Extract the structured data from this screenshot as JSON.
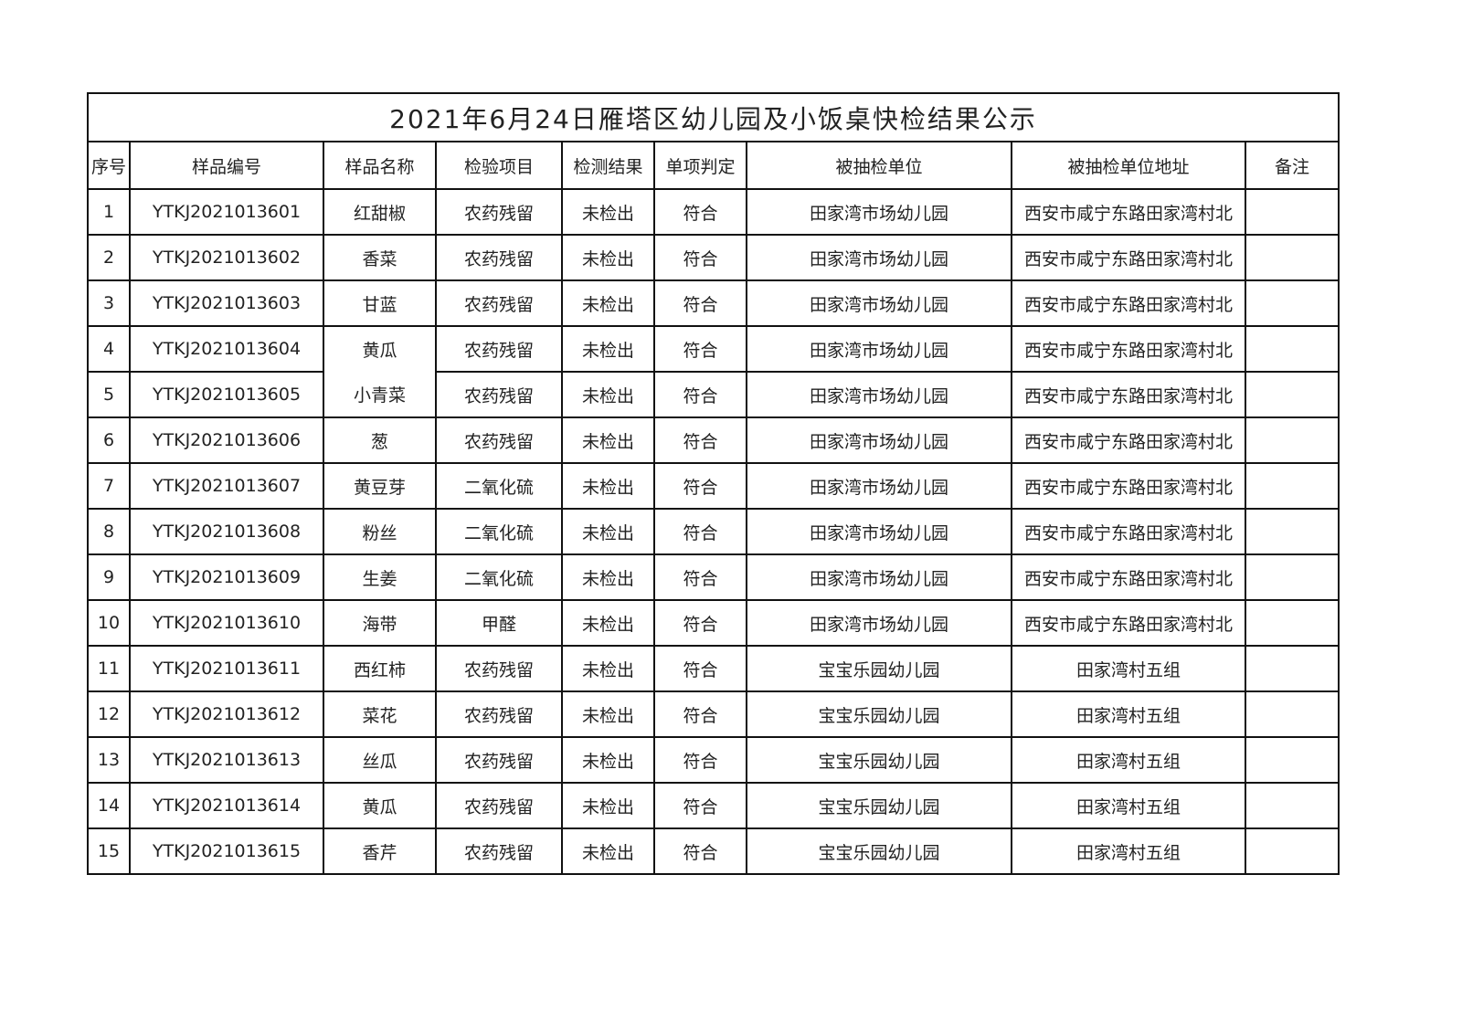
{
  "title": "2021年6月24日雁塔区幼儿园及小饭桌快检结果公示",
  "headers": [
    "序号",
    "样品编号",
    "样品名称",
    "检验项目",
    "检测结果",
    "单项判定",
    "被抽检单位",
    "被抽检单位地址",
    "备注"
  ],
  "rows": [
    [
      "1",
      "YTKJ2021013601",
      "红甜椒",
      "农药残留",
      "未检出",
      "符合",
      "田家湾市场幼儿园",
      "西安市咸宁东路田家湾村北",
      ""
    ],
    [
      "2",
      "YTKJ2021013602",
      "香菜",
      "农药残留",
      "未检出",
      "符合",
      "田家湾市场幼儿园",
      "西安市咸宁东路田家湾村北",
      ""
    ],
    [
      "3",
      "YTKJ2021013603",
      "甘蓝",
      "农药残留",
      "未检出",
      "符合",
      "田家湾市场幼儿园",
      "西安市咸宁东路田家湾村北",
      ""
    ],
    [
      "4",
      "YTKJ2021013604",
      "黄瓜",
      "农药残留",
      "未检出",
      "符合",
      "田家湾市场幼儿园",
      "西安市咸宁东路田家湾村北",
      ""
    ],
    [
      "5",
      "YTKJ2021013605",
      "小青菜",
      "农药残留",
      "未检出",
      "符合",
      "田家湾市场幼儿园",
      "西安市咸宁东路田家湾村北",
      ""
    ],
    [
      "6",
      "YTKJ2021013606",
      "葱",
      "农药残留",
      "未检出",
      "符合",
      "田家湾市场幼儿园",
      "西安市咸宁东路田家湾村北",
      ""
    ],
    [
      "7",
      "YTKJ2021013607",
      "黄豆芽",
      "二氧化硫",
      "未检出",
      "符合",
      "田家湾市场幼儿园",
      "西安市咸宁东路田家湾村北",
      ""
    ],
    [
      "8",
      "YTKJ2021013608",
      "粉丝",
      "二氧化硫",
      "未检出",
      "符合",
      "田家湾市场幼儿园",
      "西安市咸宁东路田家湾村北",
      ""
    ],
    [
      "9",
      "YTKJ2021013609",
      "生姜",
      "二氧化硫",
      "未检出",
      "符合",
      "田家湾市场幼儿园",
      "西安市咸宁东路田家湾村北",
      ""
    ],
    [
      "10",
      "YTKJ2021013610",
      "海带",
      "甲醛",
      "未检出",
      "符合",
      "田家湾市场幼儿园",
      "西安市咸宁东路田家湾村北",
      ""
    ],
    [
      "11",
      "YTKJ2021013611",
      "西红柿",
      "农药残留",
      "未检出",
      "符合",
      "宝宝乐园幼儿园",
      "田家湾村五组",
      ""
    ],
    [
      "12",
      "YTKJ2021013612",
      "菜花",
      "农药残留",
      "未检出",
      "符合",
      "宝宝乐园幼儿园",
      "田家湾村五组",
      ""
    ],
    [
      "13",
      "YTKJ2021013613",
      "丝瓜",
      "农药残留",
      "未检出",
      "符合",
      "宝宝乐园幼儿园",
      "田家湾村五组",
      ""
    ],
    [
      "14",
      "YTKJ2021013614",
      "黄瓜",
      "农药残留",
      "未检出",
      "符合",
      "宝宝乐园幼儿园",
      "田家湾村五组",
      ""
    ],
    [
      "15",
      "YTKJ2021013615",
      "香芹",
      "农药残留",
      "未检出",
      "符合",
      "宝宝乐园幼儿园",
      "田家湾村五组",
      ""
    ]
  ]
}
